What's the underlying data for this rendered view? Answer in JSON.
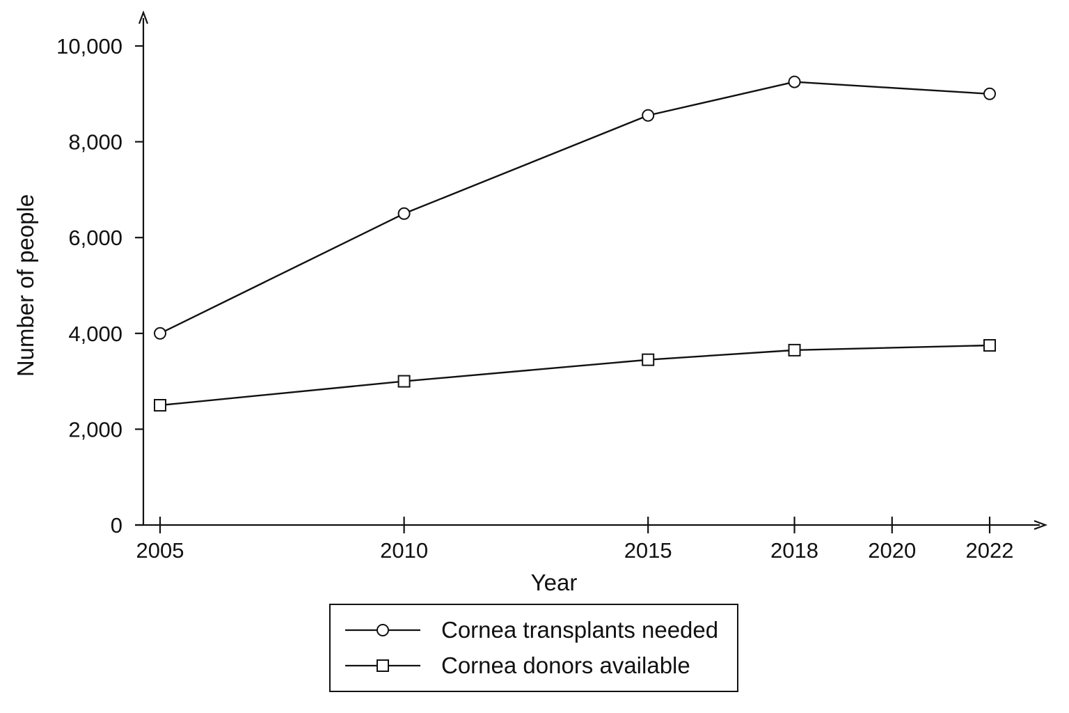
{
  "chart_data": {
    "type": "line",
    "xlabel": "Year",
    "ylabel": "Number of people",
    "ylim": [
      0,
      10000
    ],
    "yticks": [
      0,
      2000,
      4000,
      6000,
      8000,
      10000
    ],
    "ytick_labels": [
      "0",
      "2,000",
      "4,000",
      "6,000",
      "8,000",
      "10,000"
    ],
    "xticks": [
      2005,
      2010,
      2015,
      2018,
      2020,
      2022
    ],
    "xtick_labels": [
      "2005",
      "2010",
      "2015",
      "2018",
      "2020",
      "2022"
    ],
    "series": [
      {
        "name": "Cornea transplants needed",
        "marker": "circle",
        "x": [
          2005,
          2010,
          2015,
          2018,
          2022
        ],
        "y": [
          4000,
          6500,
          8550,
          9250,
          9000
        ]
      },
      {
        "name": "Cornea donors available",
        "marker": "square",
        "x": [
          2005,
          2010,
          2015,
          2018,
          2022
        ],
        "y": [
          2500,
          3000,
          3450,
          3650,
          3750
        ]
      }
    ],
    "grid": false,
    "legend_position": "bottom-center",
    "colors": {
      "line": "#111111",
      "marker_fill": "#ffffff"
    }
  }
}
